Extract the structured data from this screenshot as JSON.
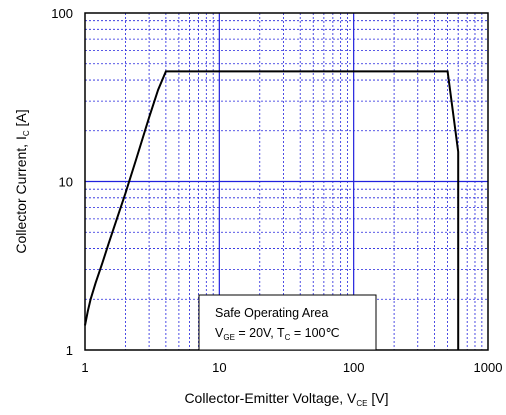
{
  "chart_data": {
    "type": "line",
    "x_scale": "log",
    "y_scale": "log",
    "xlim": [
      1,
      1000
    ],
    "ylim": [
      1,
      100
    ],
    "grid": true,
    "x_ticks": [
      "1",
      "10",
      "100",
      "1000"
    ],
    "y_ticks": [
      "1",
      "10",
      "100"
    ],
    "xlabel": {
      "main": "Collector-Emitter  Voltage, V",
      "sub": "CE",
      "unit": " [V]"
    },
    "ylabel": {
      "main": "Collector Current, I",
      "sub": "C",
      "unit": " [A]"
    },
    "legend": {
      "placement": "bottom-center",
      "line1": "Safe Operating Area",
      "line2_a": "V",
      "line2_a_sub": "GE",
      "line2_b": " = 20V, T",
      "line2_b_sub": "C",
      "line2_c": " = 100℃"
    },
    "series": [
      {
        "x": [
          1,
          1.05,
          1.1,
          1.2,
          1.35,
          1.5,
          1.7,
          2.0,
          2.4,
          3.0,
          3.5,
          4.0,
          500,
          600,
          600
        ],
        "y": [
          1.4,
          1.7,
          2.0,
          2.5,
          3.3,
          4.3,
          5.8,
          8.5,
          13.5,
          24,
          35,
          45,
          45,
          15,
          1
        ]
      }
    ],
    "colors": {
      "grid": "#2222dd",
      "line": "#000000",
      "frame": "#000000"
    }
  }
}
